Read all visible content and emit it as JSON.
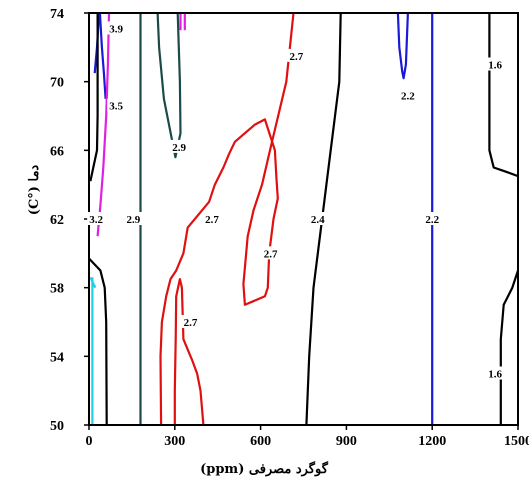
{
  "chart_data": {
    "type": "contour",
    "x_axis": {
      "label": "گوگرد مصرفی (ppm)",
      "min": 0,
      "max": 1500,
      "ticks": [
        0,
        300,
        600,
        900,
        1200,
        1500
      ]
    },
    "y_axis": {
      "label": "دما (°C)",
      "min": 50,
      "max": 74,
      "ticks": [
        50,
        54,
        58,
        62,
        66,
        70,
        74
      ]
    },
    "grid": false,
    "contours": [
      {
        "level": "3.9",
        "color": "#1a1ad6",
        "lines": [
          [
            [
              35,
              74
            ],
            [
              28,
              72
            ],
            [
              20,
              70.5
            ]
          ],
          [
            [
              38,
              74
            ],
            [
              45,
              72
            ],
            [
              52,
              70.5
            ],
            [
              58,
              69
            ]
          ]
        ],
        "labels": [
          {
            "text": "3.9",
            "x": 95,
            "y": 73.1
          }
        ]
      },
      {
        "level": "3.5",
        "color": "#e020e0",
        "lines": [
          [
            [
              70,
              74
            ],
            [
              66,
              71
            ],
            [
              60,
              68
            ],
            [
              50,
              65
            ],
            [
              40,
              62.8
            ],
            [
              30,
              61
            ]
          ],
          [
            [
              320,
              74
            ],
            [
              320,
              73
            ]
          ],
          [
            [
              335,
              74
            ],
            [
              335,
              73
            ]
          ]
        ],
        "labels": [
          {
            "text": "3.5",
            "x": 95,
            "y": 68.6
          }
        ]
      },
      {
        "level": "3.2",
        "color": "#000000",
        "lines": [
          [
            [
              30,
              74
            ],
            [
              30,
              68
            ],
            [
              28,
              66
            ],
            [
              15,
              65
            ],
            [
              5,
              64.2
            ]
          ],
          [
            [
              0,
              59.7
            ],
            [
              40,
              59
            ],
            [
              55,
              58
            ],
            [
              60,
              56
            ],
            [
              62,
              50
            ]
          ]
        ],
        "labels": [
          {
            "text": "3.2",
            "x": 25,
            "y": 62
          }
        ]
      },
      {
        "level": "2.9",
        "color": "#1c4a4a",
        "lines": [
          [
            [
              180,
              74
            ],
            [
              180,
              50
            ]
          ],
          [
            [
              240,
              74
            ],
            [
              245,
              72
            ],
            [
              262,
              69
            ],
            [
              302,
              65.6
            ],
            [
              320,
              67
            ],
            [
              318,
              70
            ],
            [
              310,
              74
            ]
          ]
        ],
        "labels": [
          {
            "text": "2.9",
            "x": 155,
            "y": 62
          },
          {
            "text": "2.9",
            "x": 315,
            "y": 66.2
          }
        ]
      },
      {
        "level": "2.7",
        "color": "#e01010",
        "lines": [
          [
            [
              715,
              74
            ],
            [
              690,
              70
            ],
            [
              640,
              66.5
            ],
            [
              605,
              64
            ],
            [
              575,
              62.5
            ],
            [
              555,
              61
            ],
            [
              540,
              58.2
            ],
            [
              545,
              57
            ],
            [
              615,
              57.5
            ],
            [
              625,
              58
            ],
            [
              630,
              60
            ],
            [
              645,
              62
            ],
            [
              660,
              63.2
            ],
            [
              655,
              64.5
            ],
            [
              650,
              66
            ],
            [
              615,
              67.8
            ],
            [
              580,
              67.5
            ],
            [
              545,
              67
            ],
            [
              510,
              66.5
            ],
            [
              490,
              65.8
            ],
            [
              470,
              65
            ],
            [
              440,
              64
            ],
            [
              420,
              63
            ],
            [
              380,
              62.2
            ],
            [
              345,
              61.5
            ],
            [
              330,
              60
            ],
            [
              305,
              59
            ],
            [
              285,
              58.5
            ],
            [
              270,
              57.5
            ],
            [
              255,
              56
            ],
            [
              250,
              54
            ],
            [
              252,
              50
            ]
          ],
          [
            [
              300,
              50
            ],
            [
              300,
              52
            ],
            [
              303,
              55
            ],
            [
              305,
              57.5
            ],
            [
              318,
              58.5
            ],
            [
              325,
              58
            ],
            [
              330,
              55
            ],
            [
              360,
              53.8
            ],
            [
              378,
              53
            ],
            [
              390,
              52
            ],
            [
              400,
              50
            ]
          ]
        ],
        "labels": [
          {
            "text": "2.7",
            "x": 725,
            "y": 71.5
          },
          {
            "text": "2.7",
            "x": 430,
            "y": 62
          },
          {
            "text": "2.7",
            "x": 635,
            "y": 60
          },
          {
            "text": "2.7",
            "x": 355,
            "y": 56
          }
        ]
      },
      {
        "level": "2.4",
        "color": "#000000",
        "lines": [
          [
            [
              880,
              74
            ],
            [
              875,
              70
            ],
            [
              845,
              66
            ],
            [
              815,
              62
            ],
            [
              785,
              58
            ],
            [
              770,
              54
            ],
            [
              760,
              50
            ]
          ]
        ],
        "labels": [
          {
            "text": "2.4",
            "x": 800,
            "y": 62
          }
        ]
      },
      {
        "level": "2.2",
        "color": "#1a1ad6",
        "lines": [
          [
            [
              1200,
              74
            ],
            [
              1200,
              50
            ]
          ],
          [
            [
              1080,
              74
            ],
            [
              1085,
              72
            ],
            [
              1095,
              70.6
            ],
            [
              1100,
              70.2
            ],
            [
              1108,
              71
            ],
            [
              1115,
              74
            ]
          ]
        ],
        "labels": [
          {
            "text": "2.2",
            "x": 1115,
            "y": 69.2
          },
          {
            "text": "2.2",
            "x": 1200,
            "y": 62
          }
        ]
      },
      {
        "level": "1.6",
        "color": "#000000",
        "lines": [
          [
            [
              1400,
              74
            ],
            [
              1400,
              66
            ],
            [
              1415,
              65
            ],
            [
              1450,
              64.8
            ],
            [
              1500,
              64.5
            ]
          ],
          [
            [
              1500,
              59
            ],
            [
              1480,
              58
            ],
            [
              1450,
              57
            ],
            [
              1440,
              55
            ],
            [
              1440,
              50
            ]
          ]
        ],
        "labels": [
          {
            "text": "1.6",
            "x": 1420,
            "y": 71
          },
          {
            "text": "1.6",
            "x": 1420,
            "y": 53
          }
        ]
      },
      {
        "level": "",
        "color": "#20d0e0",
        "lines": [
          [
            [
              12,
              50
            ],
            [
              12,
              58.6
            ]
          ],
          [
            [
              5,
              58.6
            ],
            [
              22,
              58
            ]
          ]
        ],
        "labels": []
      }
    ]
  }
}
